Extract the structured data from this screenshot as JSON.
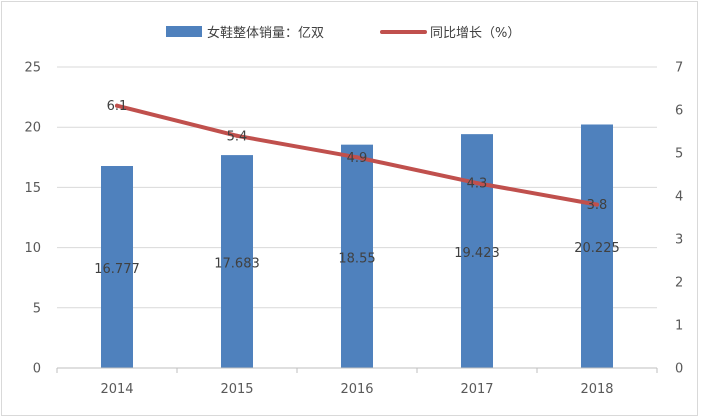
{
  "chart_data": {
    "type": "bar",
    "categories": [
      "2014",
      "2015",
      "2016",
      "2017",
      "2018"
    ],
    "series": [
      {
        "name": "女鞋整体销量：亿双",
        "kind": "bar",
        "axis": "left",
        "color": "#4f81bd",
        "values": [
          16.777,
          17.683,
          18.55,
          19.423,
          20.225
        ],
        "labels": [
          "16.777",
          "17.683",
          "18.55",
          "19.423",
          "20.225"
        ]
      },
      {
        "name": "同比增长（%）",
        "kind": "line",
        "axis": "right",
        "color": "#c0504d",
        "values": [
          6.1,
          5.4,
          4.9,
          4.3,
          3.8
        ],
        "labels": [
          "6.1",
          "5.4",
          "4.9",
          "4.3",
          "3.8"
        ]
      }
    ],
    "y_left": {
      "ylim": [
        0,
        25
      ],
      "ticks": [
        "0",
        "5",
        "10",
        "15",
        "20",
        "25"
      ]
    },
    "y_right": {
      "ylim": [
        0,
        7
      ],
      "ticks": [
        "0",
        "1",
        "2",
        "3",
        "4",
        "5",
        "6",
        "7"
      ]
    },
    "grid": true,
    "legend": "top-center"
  }
}
